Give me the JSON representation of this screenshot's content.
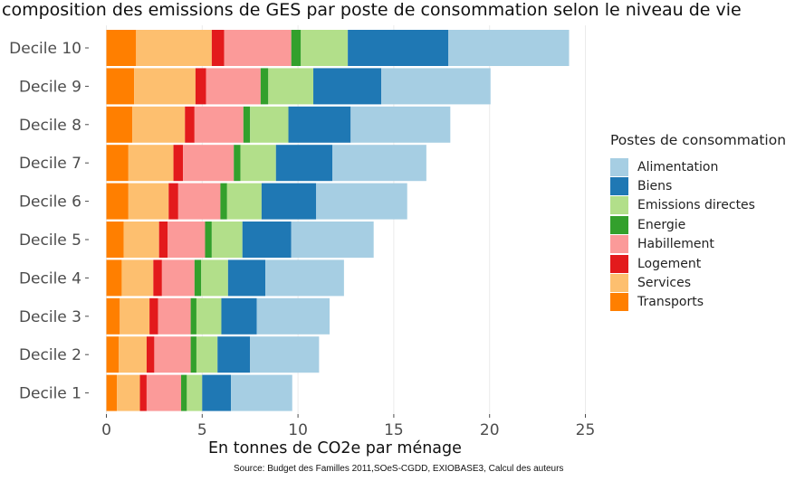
{
  "chart_data": {
    "type": "bar",
    "orientation": "horizontal",
    "stacked": true,
    "title": "composition des emissions de GES par poste de consommation selon le niveau de vie",
    "xlabel": "En tonnes de CO2e par ménage",
    "ylabel": "",
    "source": "Source: Budget des Familles 2011,SOeS-CGDD, EXIOBASE3, Calcul des auteurs",
    "xlim": [
      0,
      25
    ],
    "xticks": [
      "0",
      "5",
      "10",
      "15",
      "20",
      "25"
    ],
    "xtick_values": [
      0,
      5,
      10,
      15,
      20,
      25
    ],
    "categories": [
      "Decile 10",
      "Decile 9",
      "Decile 8",
      "Decile 7",
      "Decile 6",
      "Decile 5",
      "Decile 4",
      "Decile 3",
      "Decile 2",
      "Decile 1"
    ],
    "legend": {
      "title": "Postes de consommation",
      "position": "right"
    },
    "series": [
      {
        "name": "Transports",
        "color": "#FF7F00",
        "values": [
          1.55,
          1.45,
          1.35,
          1.15,
          1.15,
          0.9,
          0.8,
          0.7,
          0.65,
          0.55
        ]
      },
      {
        "name": "Services",
        "color": "#FDBF6F",
        "values": [
          3.95,
          3.2,
          2.75,
          2.35,
          2.1,
          1.85,
          1.65,
          1.55,
          1.45,
          1.2
        ]
      },
      {
        "name": "Logement",
        "color": "#E31A1C",
        "values": [
          0.65,
          0.55,
          0.5,
          0.5,
          0.5,
          0.45,
          0.45,
          0.45,
          0.4,
          0.35
        ]
      },
      {
        "name": "Habillement",
        "color": "#FB9A99",
        "values": [
          3.5,
          2.85,
          2.55,
          2.65,
          2.2,
          1.95,
          1.7,
          1.7,
          1.9,
          1.8
        ]
      },
      {
        "name": "Energie",
        "color": "#33A02C",
        "values": [
          0.5,
          0.4,
          0.35,
          0.35,
          0.35,
          0.35,
          0.35,
          0.3,
          0.3,
          0.3
        ]
      },
      {
        "name": "Emissions directes",
        "color": "#B2DF8A",
        "values": [
          2.45,
          2.35,
          2.0,
          1.85,
          1.8,
          1.6,
          1.4,
          1.3,
          1.1,
          0.8
        ]
      },
      {
        "name": "Biens",
        "color": "#1F78B4",
        "values": [
          5.25,
          3.55,
          3.25,
          2.95,
          2.85,
          2.55,
          1.95,
          1.85,
          1.7,
          1.5
        ]
      },
      {
        "name": "Alimentation",
        "color": "#A6CEE3",
        "values": [
          6.3,
          5.7,
          5.2,
          4.9,
          4.75,
          4.3,
          4.1,
          3.8,
          3.6,
          3.2
        ]
      }
    ],
    "legend_order": [
      "Alimentation",
      "Biens",
      "Emissions directes",
      "Energie",
      "Habillement",
      "Logement",
      "Services",
      "Transports"
    ]
  }
}
